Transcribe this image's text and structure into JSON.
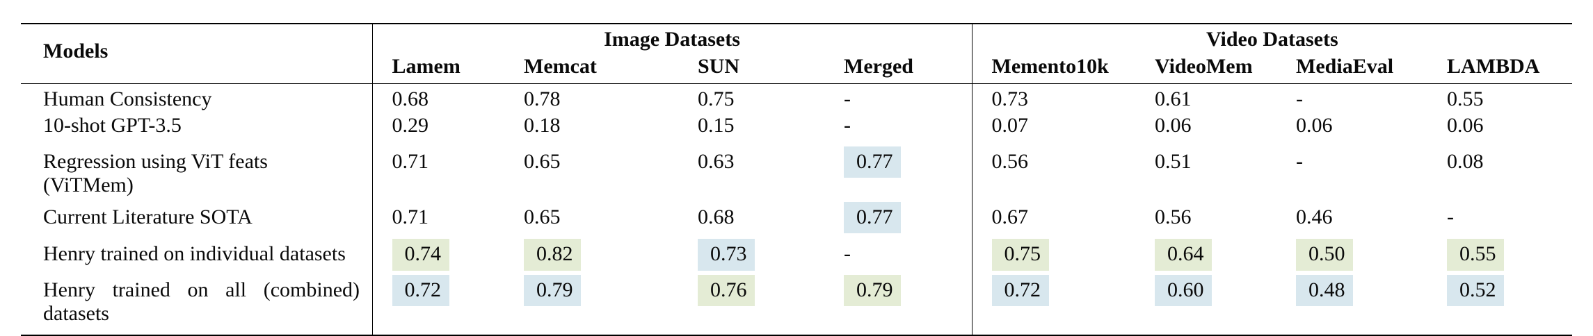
{
  "page": {
    "background": "#ffffff"
  },
  "table": {
    "models_header": "Models",
    "groups": [
      {
        "label": "Image Datasets",
        "columns": [
          "Lamem",
          "Memcat",
          "SUN",
          "Merged"
        ]
      },
      {
        "label": "Video Datasets",
        "columns": [
          "Memento10k",
          "VideoMem",
          "MediaEval",
          "LAMBDA"
        ]
      }
    ],
    "highlight_colors": {
      "green": "#e4ecd5",
      "blue": "#d8e7ee"
    },
    "rows": [
      {
        "model": "Human Consistency",
        "values": [
          {
            "text": "0.68"
          },
          {
            "text": "0.78"
          },
          {
            "text": "0.75"
          },
          {
            "text": "-"
          },
          {
            "text": "0.73"
          },
          {
            "text": "0.61"
          },
          {
            "text": "-"
          },
          {
            "text": "0.55"
          }
        ]
      },
      {
        "model": "10-shot GPT-3.5",
        "values": [
          {
            "text": "0.29"
          },
          {
            "text": "0.18"
          },
          {
            "text": "0.15"
          },
          {
            "text": "-"
          },
          {
            "text": "0.07"
          },
          {
            "text": "0.06"
          },
          {
            "text": "0.06"
          },
          {
            "text": "0.06"
          }
        ]
      },
      {
        "model": "Regression using ViT feats (ViTMem)",
        "values": [
          {
            "text": "0.71"
          },
          {
            "text": "0.65"
          },
          {
            "text": "0.63"
          },
          {
            "text": "0.77",
            "highlight": "blue"
          },
          {
            "text": "0.56"
          },
          {
            "text": "0.51"
          },
          {
            "text": "-"
          },
          {
            "text": "0.08"
          }
        ]
      },
      {
        "model": "Current Literature SOTA",
        "values": [
          {
            "text": "0.71"
          },
          {
            "text": "0.65"
          },
          {
            "text": "0.68"
          },
          {
            "text": "0.77",
            "highlight": "blue"
          },
          {
            "text": "0.67"
          },
          {
            "text": "0.56"
          },
          {
            "text": "0.46"
          },
          {
            "text": "-"
          }
        ]
      },
      {
        "model": "Henry trained on individual datasets",
        "values": [
          {
            "text": "0.74",
            "highlight": "green"
          },
          {
            "text": "0.82",
            "highlight": "green"
          },
          {
            "text": "0.73",
            "highlight": "blue"
          },
          {
            "text": "-"
          },
          {
            "text": "0.75",
            "highlight": "green"
          },
          {
            "text": "0.64",
            "highlight": "green"
          },
          {
            "text": "0.50",
            "highlight": "green"
          },
          {
            "text": "0.55",
            "highlight": "green"
          }
        ]
      },
      {
        "model": "Henry trained on all (combined) datasets",
        "justify": true,
        "values": [
          {
            "text": "0.72",
            "highlight": "blue"
          },
          {
            "text": "0.79",
            "highlight": "blue"
          },
          {
            "text": "0.76",
            "highlight": "green"
          },
          {
            "text": "0.79",
            "highlight": "green"
          },
          {
            "text": "0.72",
            "highlight": "blue"
          },
          {
            "text": "0.60",
            "highlight": "blue"
          },
          {
            "text": "0.48",
            "highlight": "blue"
          },
          {
            "text": "0.52",
            "highlight": "blue"
          }
        ]
      }
    ]
  }
}
